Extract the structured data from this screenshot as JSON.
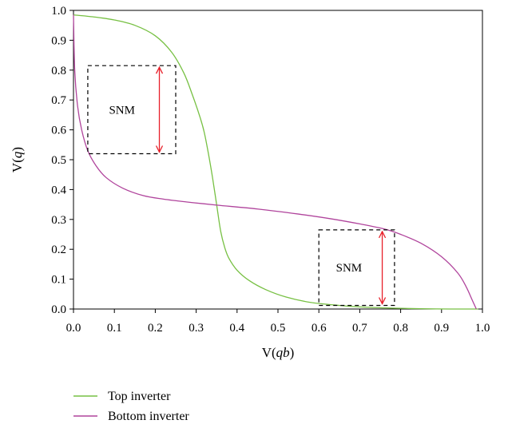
{
  "chart_data": {
    "type": "line",
    "xlabel": {
      "prefix": "V(",
      "var": "qb",
      "suffix": ")"
    },
    "ylabel": {
      "prefix": "V(",
      "var": "q",
      "suffix": ")"
    },
    "xlim": [
      0.0,
      1.0
    ],
    "ylim": [
      0.0,
      1.0
    ],
    "x_ticks": [
      "0.0",
      "0.1",
      "0.2",
      "0.3",
      "0.4",
      "0.5",
      "0.6",
      "0.7",
      "0.8",
      "0.9",
      "1.0"
    ],
    "y_ticks": [
      "0.0",
      "0.1",
      "0.2",
      "0.3",
      "0.4",
      "0.5",
      "0.6",
      "0.7",
      "0.8",
      "0.9",
      "1.0"
    ],
    "grid": false,
    "legend_position": "bottom-left",
    "series": [
      {
        "name": "Top inverter",
        "color": "#77c043",
        "points": [
          [
            0.0,
            0.985
          ],
          [
            0.05,
            0.978
          ],
          [
            0.1,
            0.968
          ],
          [
            0.15,
            0.95
          ],
          [
            0.2,
            0.915
          ],
          [
            0.24,
            0.86
          ],
          [
            0.27,
            0.79
          ],
          [
            0.29,
            0.72
          ],
          [
            0.31,
            0.64
          ],
          [
            0.32,
            0.59
          ],
          [
            0.33,
            0.52
          ],
          [
            0.34,
            0.44
          ],
          [
            0.35,
            0.35
          ],
          [
            0.36,
            0.26
          ],
          [
            0.37,
            0.205
          ],
          [
            0.38,
            0.17
          ],
          [
            0.4,
            0.13
          ],
          [
            0.43,
            0.095
          ],
          [
            0.47,
            0.065
          ],
          [
            0.52,
            0.04
          ],
          [
            0.58,
            0.022
          ],
          [
            0.65,
            0.012
          ],
          [
            0.7,
            0.007
          ],
          [
            0.78,
            0.003
          ],
          [
            0.85,
            0.001
          ],
          [
            0.92,
            0.0
          ],
          [
            0.99,
            0.0
          ]
        ]
      },
      {
        "name": "Bottom inverter",
        "color": "#b0449c",
        "points": [
          [
            0.0,
            0.985
          ],
          [
            0.003,
            0.8
          ],
          [
            0.01,
            0.68
          ],
          [
            0.02,
            0.6
          ],
          [
            0.035,
            0.53
          ],
          [
            0.055,
            0.48
          ],
          [
            0.08,
            0.44
          ],
          [
            0.12,
            0.405
          ],
          [
            0.17,
            0.38
          ],
          [
            0.22,
            0.368
          ],
          [
            0.28,
            0.358
          ],
          [
            0.35,
            0.348
          ],
          [
            0.45,
            0.335
          ],
          [
            0.55,
            0.318
          ],
          [
            0.63,
            0.302
          ],
          [
            0.7,
            0.285
          ],
          [
            0.76,
            0.268
          ],
          [
            0.8,
            0.25
          ],
          [
            0.85,
            0.22
          ],
          [
            0.9,
            0.175
          ],
          [
            0.94,
            0.12
          ],
          [
            0.96,
            0.075
          ],
          [
            0.975,
            0.03
          ],
          [
            0.985,
            0.0
          ]
        ]
      }
    ],
    "annotations": [
      {
        "label": "SNM",
        "box": [
          0.035,
          0.52,
          0.25,
          0.815
        ],
        "arrow_x": 0.21
      },
      {
        "label": "SNM",
        "box": [
          0.6,
          0.012,
          0.785,
          0.265
        ],
        "arrow_x": 0.755
      }
    ],
    "annotation_style": {
      "box_color": "#000000",
      "arrow_color": "#e8202a"
    }
  }
}
